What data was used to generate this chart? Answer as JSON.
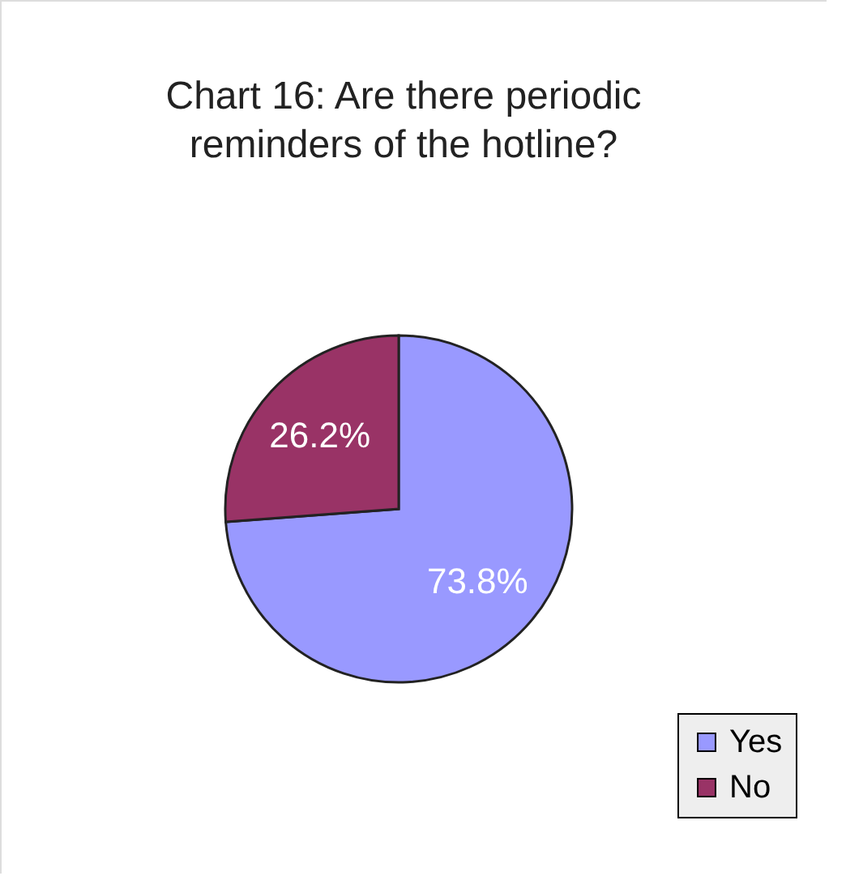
{
  "chart_data": {
    "type": "pie",
    "title": "Chart 16: Are there periodic reminders of the hotline?",
    "categories": [
      "Yes",
      "No"
    ],
    "values": [
      73.8,
      26.2
    ],
    "colors": [
      "#9999ff",
      "#993366"
    ],
    "value_labels": [
      "73.8%",
      "26.2%"
    ],
    "legend": "bottom right"
  }
}
